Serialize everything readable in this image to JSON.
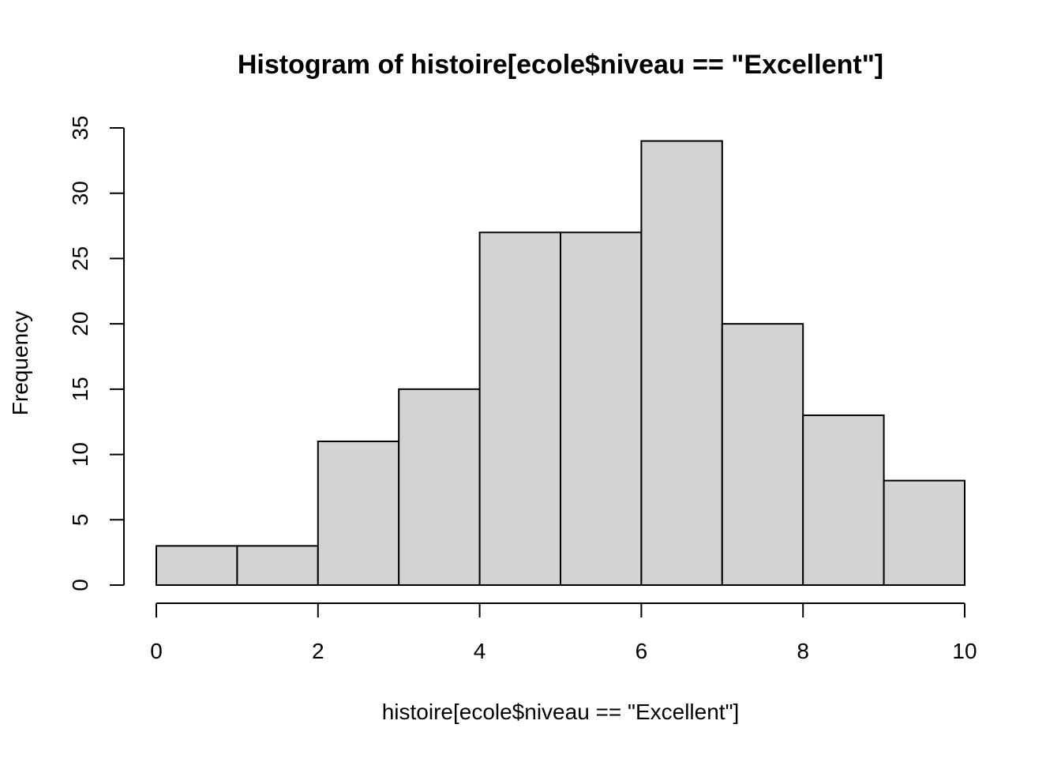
{
  "chart_data": {
    "type": "bar",
    "title": "Histogram of histoire[ecole$niveau == \"Excellent\"]",
    "xlabel": "histoire[ecole$niveau == \"Excellent\"]",
    "ylabel": "Frequency",
    "bins": [
      {
        "from": 0,
        "to": 1,
        "count": 3
      },
      {
        "from": 1,
        "to": 2,
        "count": 3
      },
      {
        "from": 2,
        "to": 3,
        "count": 11
      },
      {
        "from": 3,
        "to": 4,
        "count": 15
      },
      {
        "from": 4,
        "to": 5,
        "count": 27
      },
      {
        "from": 5,
        "to": 6,
        "count": 27
      },
      {
        "from": 6,
        "to": 7,
        "count": 34
      },
      {
        "from": 7,
        "to": 8,
        "count": 20
      },
      {
        "from": 8,
        "to": 9,
        "count": 13
      },
      {
        "from": 9,
        "to": 10,
        "count": 8
      }
    ],
    "xlim": [
      0,
      10
    ],
    "ylim": [
      0,
      35
    ],
    "x_ticks": [
      "0",
      "2",
      "4",
      "6",
      "8",
      "10"
    ],
    "y_ticks": [
      "0",
      "5",
      "10",
      "15",
      "20",
      "25",
      "30",
      "35"
    ],
    "bar_color": "#d3d3d3",
    "grid": false,
    "legend": "none"
  }
}
